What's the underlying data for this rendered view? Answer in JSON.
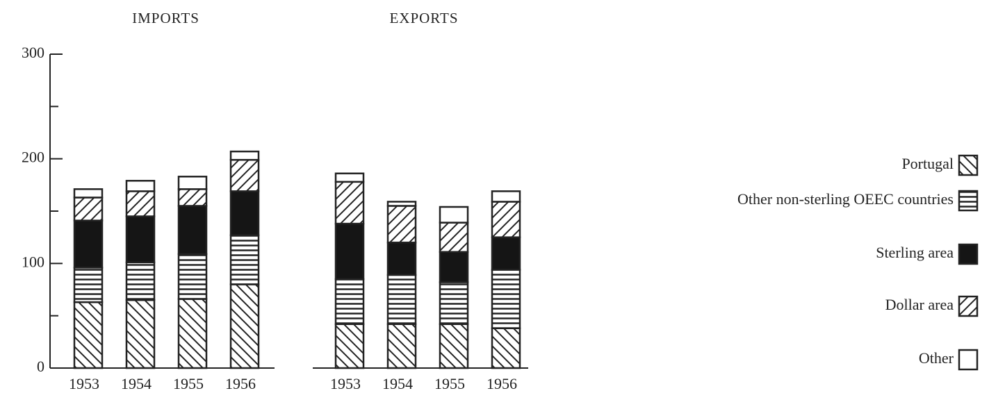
{
  "chart_data": {
    "type": "bar",
    "stacked": true,
    "ylim": [
      0,
      300
    ],
    "yticks": [
      0,
      100,
      200,
      300
    ],
    "yminor": [
      50,
      150,
      250
    ],
    "series": [
      {
        "name": "Portugal",
        "pattern": "back-diagonal"
      },
      {
        "name": "Other non-sterling OEEC countries",
        "pattern": "horizontal"
      },
      {
        "name": "Sterling area",
        "pattern": "solid"
      },
      {
        "name": "Dollar area",
        "pattern": "diagonal"
      },
      {
        "name": "Other",
        "pattern": "none"
      }
    ],
    "panels": [
      {
        "title": "IMPORTS",
        "categories": [
          "1953",
          "1954",
          "1955",
          "1956"
        ],
        "values": [
          [
            63,
            65,
            66,
            80
          ],
          [
            33,
            36,
            43,
            47
          ],
          [
            45,
            44,
            46,
            42
          ],
          [
            22,
            24,
            16,
            30
          ],
          [
            8,
            10,
            12,
            8
          ]
        ]
      },
      {
        "title": "EXPORTS",
        "categories": [
          "1953",
          "1954",
          "1955",
          "1956"
        ],
        "values": [
          [
            42,
            42,
            42,
            38
          ],
          [
            43,
            47,
            40,
            56
          ],
          [
            53,
            31,
            29,
            31
          ],
          [
            40,
            35,
            28,
            34
          ],
          [
            8,
            4,
            15,
            10
          ]
        ]
      }
    ]
  }
}
